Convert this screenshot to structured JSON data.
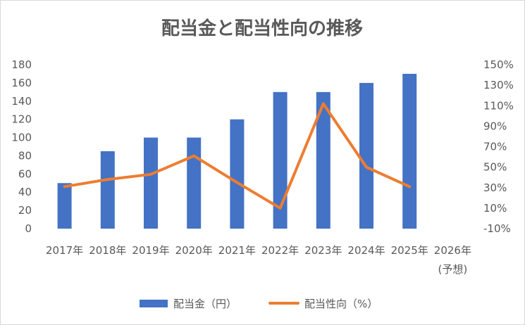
{
  "chart_data": {
    "type": "bar",
    "title": "配当金と配当性向の推移",
    "categories": [
      "2017年",
      "2018年",
      "2019年",
      "2020年",
      "2021年",
      "2022年",
      "2023年",
      "2024年",
      "2025年",
      "2026年"
    ],
    "category_sublabels": [
      "",
      "",
      "",
      "",
      "",
      "",
      "",
      "",
      "",
      "(予想)"
    ],
    "series": [
      {
        "name": "配当金（円）",
        "type": "bar",
        "axis": "left",
        "color": "#4472c4",
        "values": [
          50,
          85,
          100,
          100,
          120,
          150,
          150,
          160,
          170,
          null
        ]
      },
      {
        "name": "配当性向（%）",
        "type": "line",
        "axis": "right",
        "color": "#ed7d31",
        "values": [
          31,
          38,
          43,
          61,
          35,
          10,
          112,
          50,
          31,
          null
        ]
      }
    ],
    "y_left": {
      "min": 0,
      "max": 180,
      "step": 20,
      "ticks": [
        "0",
        "20",
        "40",
        "60",
        "80",
        "100",
        "120",
        "140",
        "160",
        "180"
      ]
    },
    "y_right": {
      "min": -10,
      "max": 150,
      "step": 20,
      "ticks": [
        "-10%",
        "10%",
        "30%",
        "50%",
        "70%",
        "90%",
        "110%",
        "130%",
        "150%"
      ]
    },
    "grid": false,
    "legend_position": "bottom"
  }
}
